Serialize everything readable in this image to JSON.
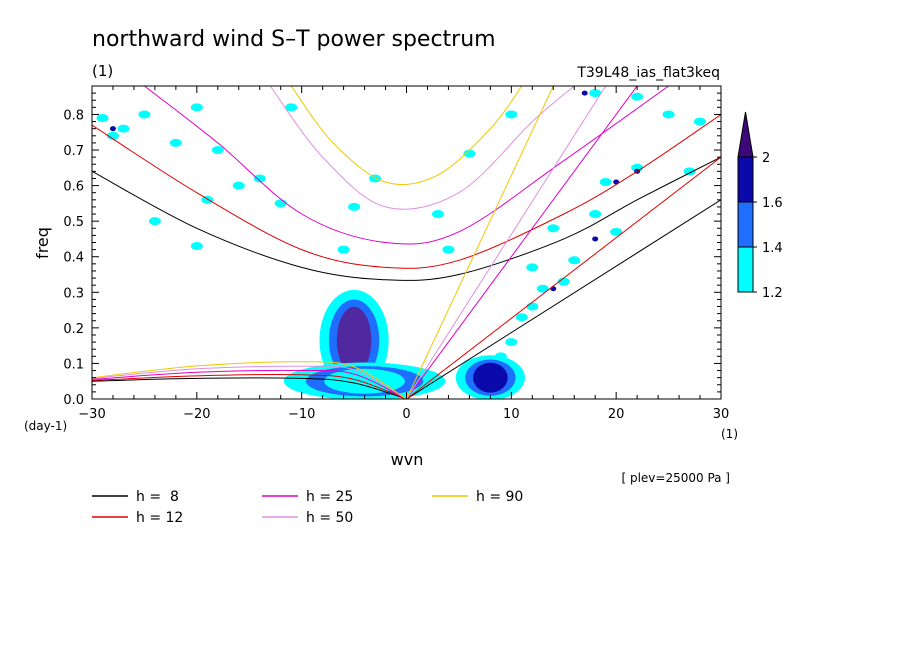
{
  "chart_data": {
    "type": "contour",
    "title": "northward wind S–T power spectrum",
    "units": "(1)",
    "run": "T39L48_ias_flat3keq",
    "xlabel": "wvn",
    "ylabel": "freq",
    "x_units": "(1)",
    "y_units": "(day-1)",
    "level_note": "[ plev=25000 Pa ]",
    "xlim": [
      -30,
      30
    ],
    "ylim": [
      0,
      0.88
    ],
    "x_ticks": [
      -30,
      -20,
      -10,
      0,
      10,
      20,
      30
    ],
    "y_ticks": [
      0.0,
      0.1,
      0.2,
      0.3,
      0.4,
      0.5,
      0.6,
      0.7,
      0.8
    ],
    "colorbar": {
      "levels": [
        1.2,
        1.4,
        1.6,
        2
      ],
      "colors": [
        "#00ffff",
        "#1e6eff",
        "#0a0aaa",
        "#5028a0"
      ],
      "triangle_color": "#3c0a78"
    },
    "shaded_regions": [
      {
        "level": 2,
        "x": [
          -8,
          -2
        ],
        "y": [
          0.03,
          0.3
        ]
      },
      {
        "level": 1.6,
        "x": [
          5,
          11
        ],
        "y": [
          0.0,
          0.12
        ]
      },
      {
        "level": 1.2,
        "x": [
          -11,
          3
        ],
        "y": [
          0.0,
          0.1
        ]
      }
    ],
    "legend": [
      {
        "label": "h =  8",
        "color": "#000000"
      },
      {
        "label": "h = 12",
        "color": "#e00000"
      },
      {
        "label": "h = 25",
        "color": "#e000c8"
      },
      {
        "label": "h = 50",
        "color": "#e090e0"
      },
      {
        "label": "h = 90",
        "color": "#f0c800"
      }
    ],
    "series": [
      {
        "label": "h =  8",
        "color": "#000000",
        "kelvin": [
          [
            0,
            0
          ],
          [
            30,
            0.56
          ]
        ],
        "rossby": [
          [
            -30,
            0.05
          ],
          [
            -20,
            0.058
          ],
          [
            -10,
            0.058
          ],
          [
            -5,
            0.045
          ],
          [
            0,
            0
          ]
        ],
        "gravity": [
          [
            -30,
            0.64
          ],
          [
            -20,
            0.48
          ],
          [
            -10,
            0.37
          ],
          [
            -2,
            0.335
          ],
          [
            5,
            0.35
          ],
          [
            15,
            0.45
          ],
          [
            22,
            0.56
          ],
          [
            30,
            0.68
          ]
        ]
      },
      {
        "label": "h = 12",
        "color": "#e00000",
        "kelvin": [
          [
            0,
            0
          ],
          [
            30,
            0.68
          ]
        ],
        "rossby": [
          [
            -30,
            0.052
          ],
          [
            -20,
            0.065
          ],
          [
            -10,
            0.068
          ],
          [
            -5,
            0.055
          ],
          [
            0,
            0
          ]
        ],
        "gravity": [
          [
            -30,
            0.77
          ],
          [
            -20,
            0.58
          ],
          [
            -10,
            0.42
          ],
          [
            -2,
            0.37
          ],
          [
            5,
            0.39
          ],
          [
            15,
            0.52
          ],
          [
            22,
            0.64
          ],
          [
            30,
            0.8
          ]
        ]
      },
      {
        "label": "h = 25",
        "color": "#e000c8",
        "kelvin": [
          [
            0,
            0
          ],
          [
            22,
            0.88
          ]
        ],
        "rossby": [
          [
            -30,
            0.055
          ],
          [
            -20,
            0.075
          ],
          [
            -10,
            0.08
          ],
          [
            -5,
            0.07
          ],
          [
            0,
            0
          ]
        ],
        "gravity": [
          [
            -25,
            0.88
          ],
          [
            -18,
            0.72
          ],
          [
            -10,
            0.52
          ],
          [
            -2,
            0.44
          ],
          [
            5,
            0.47
          ],
          [
            15,
            0.67
          ],
          [
            25,
            0.88
          ]
        ]
      },
      {
        "label": "h = 50",
        "color": "#e090e0",
        "kelvin": [
          [
            0,
            0
          ],
          [
            19,
            0.88
          ]
        ],
        "rossby": [
          [
            -30,
            0.058
          ],
          [
            -20,
            0.085
          ],
          [
            -10,
            0.092
          ],
          [
            -5,
            0.082
          ],
          [
            0,
            0
          ]
        ],
        "gravity": [
          [
            -13,
            0.88
          ],
          [
            -8,
            0.68
          ],
          [
            -2,
            0.54
          ],
          [
            5,
            0.58
          ],
          [
            12,
            0.78
          ],
          [
            16,
            0.88
          ]
        ]
      },
      {
        "label": "h = 90",
        "color": "#f0c800",
        "kelvin": [
          [
            0,
            0
          ],
          [
            14,
            0.88
          ]
        ],
        "rossby": [
          [
            -30,
            0.06
          ],
          [
            -20,
            0.093
          ],
          [
            -10,
            0.105
          ],
          [
            -5,
            0.09
          ],
          [
            0,
            0
          ]
        ],
        "gravity": [
          [
            -11,
            0.88
          ],
          [
            -7,
            0.72
          ],
          [
            -2,
            0.61
          ],
          [
            3,
            0.63
          ],
          [
            8,
            0.76
          ],
          [
            11,
            0.88
          ]
        ]
      }
    ]
  }
}
